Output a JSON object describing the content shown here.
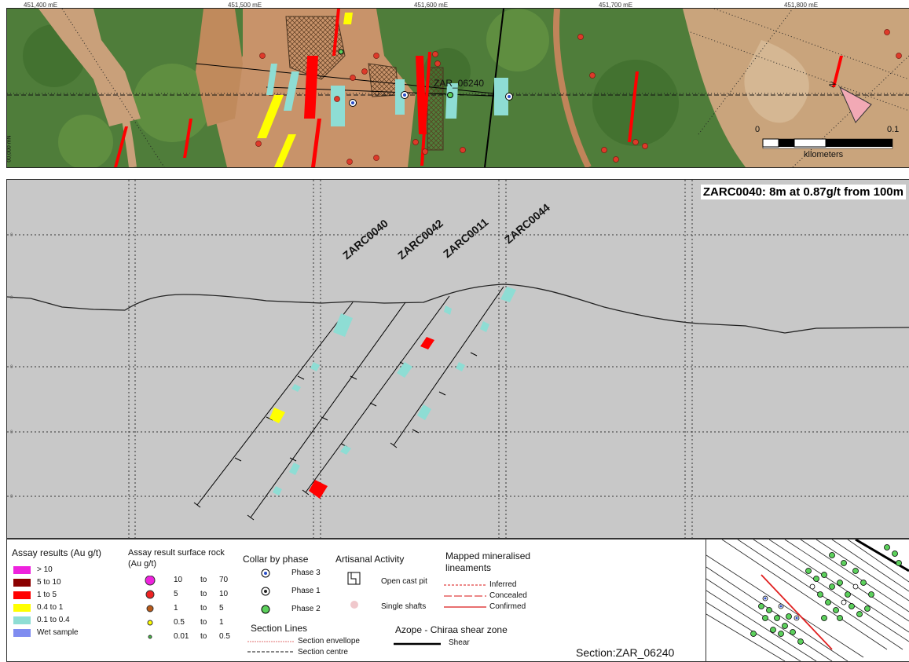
{
  "map": {
    "coords_top": [
      "451,400 mE",
      "451,500 mE",
      "451,600 mE",
      "451,700 mE",
      "451,800 mE"
    ],
    "coord_side": "00,000 mN",
    "section_label": "ZAR_06240",
    "scale": {
      "zero": "0",
      "max": "0.1",
      "unit": "kilometers"
    }
  },
  "section": {
    "result_text": "ZARC0040: 8m at 0.87g/t from 100m",
    "holes": [
      "ZARC0040",
      "ZARC0042",
      "ZARC0011",
      "ZARC0044"
    ]
  },
  "legend": {
    "assay_title": "Assay results (Au g/t)",
    "assay_items": [
      {
        "label": "> 10",
        "color": "#ee22dd"
      },
      {
        "label": "5 to 10",
        "color": "#8b0000"
      },
      {
        "label": "1 to 5",
        "color": "#ff0000"
      },
      {
        "label": "0.4 to 1",
        "color": "#ffff00"
      },
      {
        "label": "0.1 to 0.4",
        "color": "#8eddd4"
      },
      {
        "label": "Wet sample",
        "color": "#7f8cf0"
      }
    ],
    "surface_title": "Assay result surface rock (Au g/t)",
    "surface_items": [
      {
        "from": "10",
        "to": "to",
        "upper": "70",
        "color": "#ee22dd"
      },
      {
        "from": "5",
        "to": "to",
        "upper": "10",
        "color": "#ee2222"
      },
      {
        "from": "1",
        "to": "to",
        "upper": "5",
        "color": "#b85a1a"
      },
      {
        "from": "0.5",
        "to": "to",
        "upper": "1",
        "color": "#ffff00"
      },
      {
        "from": "0.01",
        "to": "to",
        "upper": "0.5",
        "color": "#44bb44"
      }
    ],
    "collar_title": "Collar by phase",
    "collar_items": [
      "Phase 3",
      "Phase 1",
      "Phase 2"
    ],
    "artisanal_title": "Artisanal Activity",
    "artisanal_items": [
      "Open cast pit",
      "Single shafts"
    ],
    "lineament_title": "Mapped mineralised lineaments",
    "lineament_items": [
      "Inferred",
      "Concealed",
      "Confirmed"
    ],
    "section_lines_title": "Section Lines",
    "section_lines_items": [
      "Section envellope",
      "Section centre"
    ],
    "shear_title": "Azope - Chiraa shear zone",
    "shear_item": "Shear",
    "section_name": "Section:ZAR_06240"
  }
}
